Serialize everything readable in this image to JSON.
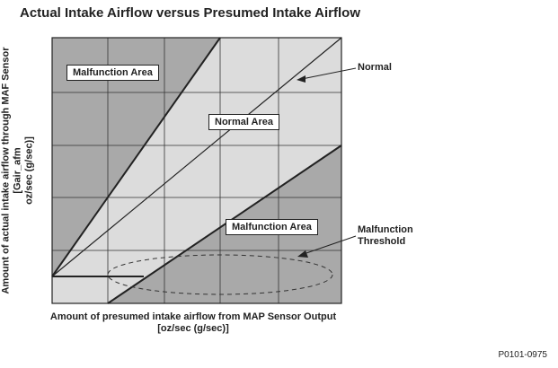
{
  "title": "Actual Intake Airflow versus Presumed Intake Airflow",
  "y_axis": {
    "line1": "Amount of actual intake airflow through MAF Sensor",
    "line2": "[Gair_afm",
    "line3": "oz/sec (g/sec)]"
  },
  "x_axis": {
    "line1": "Amount of presumed intake airflow from MAP Sensor Output",
    "line2": "[oz/sec (g/sec)]"
  },
  "regions": {
    "upper": "Malfunction Area",
    "middle": "Normal Area",
    "lower": "Malfunction Area"
  },
  "callouts": {
    "normal": "Normal",
    "threshold_line1": "Malfunction",
    "threshold_line2": "Threshold"
  },
  "footer": "P0101-0975",
  "colors": {
    "dark_fill": "#a9a9a9",
    "light_fill": "#dcdcdc",
    "line": "#222222"
  }
}
